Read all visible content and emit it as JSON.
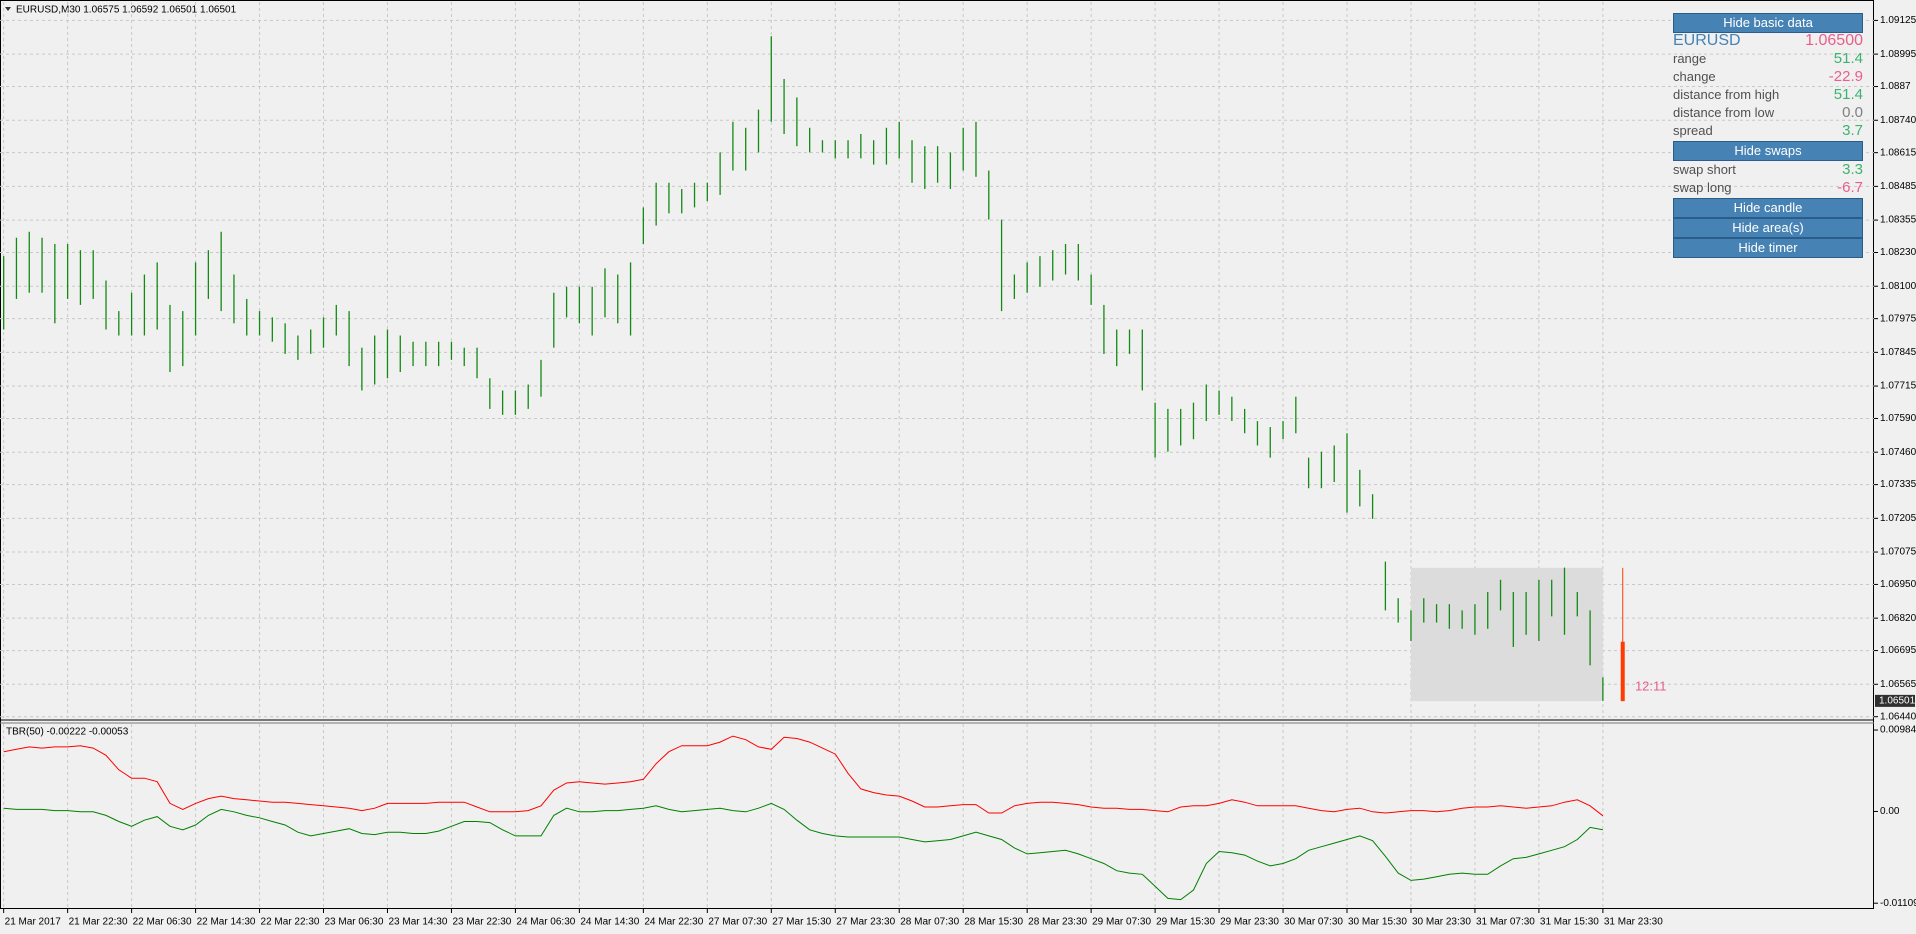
{
  "chart_data": [
    {
      "type": "hilo",
      "header": "EURUSD,M30  1.06575 1.06592 1.06501 1.06501",
      "color": "#138a13",
      "categories": [
        "21 Mar 2017",
        null,
        null,
        null,
        null,
        "21 Mar 22:30",
        null,
        null,
        null,
        null,
        "22 Mar 06:30",
        null,
        null,
        null,
        null,
        "22 Mar 14:30",
        null,
        null,
        null,
        null,
        "22 Mar 22:30",
        null,
        null,
        null,
        null,
        "23 Mar 06:30",
        null,
        null,
        null,
        null,
        "23 Mar 14:30",
        null,
        null,
        null,
        null,
        "23 Mar 22:30",
        null,
        null,
        null,
        null,
        "24 Mar 06:30",
        null,
        null,
        null,
        null,
        "24 Mar 14:30",
        null,
        null,
        null,
        null,
        "24 Mar 22:30",
        null,
        null,
        null,
        null,
        "27 Mar 07:30",
        null,
        null,
        null,
        null,
        "27 Mar 15:30",
        null,
        null,
        null,
        null,
        "27 Mar 23:30",
        null,
        null,
        null,
        null,
        "28 Mar 07:30",
        null,
        null,
        null,
        null,
        "28 Mar 15:30",
        null,
        null,
        null,
        null,
        "28 Mar 23:30",
        null,
        null,
        null,
        null,
        "29 Mar 07:30",
        null,
        null,
        null,
        null,
        "29 Mar 15:30",
        null,
        null,
        null,
        null,
        "29 Mar 23:30",
        null,
        null,
        null,
        null,
        "30 Mar 07:30",
        null,
        null,
        null,
        null,
        "30 Mar 15:30",
        null,
        null,
        null,
        null,
        "30 Mar 23:30",
        null,
        null,
        null,
        null,
        "31 Mar 07:30",
        null,
        null,
        null,
        null,
        "31 Mar 15:30",
        null,
        null,
        null,
        null,
        "31 Mar 23:30"
      ],
      "high": [
        1.08216,
        1.08287,
        1.0831,
        1.08287,
        1.08263,
        1.08263,
        1.08239,
        1.08239,
        1.08122,
        1.08004,
        1.08075,
        1.08145,
        1.08192,
        1.08028,
        1.08004,
        1.08192,
        1.08239,
        1.0831,
        1.08145,
        1.08051,
        1.08004,
        1.0798,
        1.07957,
        1.0791,
        1.07933,
        1.0798,
        1.08028,
        1.08004,
        1.07863,
        1.0791,
        1.07933,
        1.0791,
        1.07886,
        1.07886,
        1.07886,
        1.07886,
        1.07863,
        1.07863,
        1.07745,
        1.07698,
        1.07698,
        1.07721,
        1.07816,
        1.08075,
        1.08098,
        1.08098,
        1.08098,
        1.08169,
        1.08145,
        1.08192,
        1.08404,
        1.08499,
        1.08499,
        1.08475,
        1.08499,
        1.08499,
        1.08616,
        1.08734,
        1.08711,
        1.08781,
        1.09064,
        1.08899,
        1.08828,
        1.08711,
        1.08663,
        1.08663,
        1.08663,
        1.08687,
        1.08663,
        1.08711,
        1.08734,
        1.08663,
        1.0864,
        1.0864,
        1.08616,
        1.08711,
        1.08734,
        1.08546,
        1.08357,
        1.08145,
        1.08192,
        1.08216,
        1.08239,
        1.08263,
        1.08263,
        1.08145,
        1.08028,
        1.07933,
        1.07933,
        1.07933,
        1.07651,
        1.07627,
        1.07627,
        1.07651,
        1.07721,
        1.07698,
        1.07674,
        1.07627,
        1.0758,
        1.07557,
        1.0758,
        1.07674,
        1.07439,
        1.07462,
        1.07486,
        1.07533,
        1.07392,
        1.07298,
        1.07038,
        1.06897,
        1.0685,
        1.06897,
        1.06874,
        1.06874,
        1.0685,
        1.06874,
        1.06921,
        1.06968,
        1.06921,
        1.06921,
        1.06968,
        1.06968,
        1.07015,
        1.06921,
        1.0685,
        1.06592
      ],
      "low": [
        1.07933,
        1.08051,
        1.08075,
        1.08075,
        1.07957,
        1.08051,
        1.08028,
        1.08051,
        1.07933,
        1.0791,
        1.0791,
        1.0791,
        1.07933,
        1.07769,
        1.07792,
        1.0791,
        1.08051,
        1.08004,
        1.07957,
        1.0791,
        1.0791,
        1.07886,
        1.07839,
        1.07816,
        1.07839,
        1.07863,
        1.0791,
        1.07792,
        1.07698,
        1.07721,
        1.07745,
        1.07769,
        1.07792,
        1.07792,
        1.07792,
        1.07816,
        1.07792,
        1.07745,
        1.07627,
        1.07604,
        1.07604,
        1.07627,
        1.07674,
        1.07863,
        1.0798,
        1.07957,
        1.0791,
        1.0798,
        1.07957,
        1.0791,
        1.08263,
        1.08334,
        1.08381,
        1.08381,
        1.08404,
        1.08428,
        1.08452,
        1.08546,
        1.08546,
        1.08616,
        1.08734,
        1.08687,
        1.0864,
        1.08616,
        1.08616,
        1.08593,
        1.08593,
        1.08593,
        1.08569,
        1.08569,
        1.08593,
        1.08499,
        1.08475,
        1.08499,
        1.08475,
        1.08546,
        1.08522,
        1.08357,
        1.08004,
        1.08051,
        1.08075,
        1.08098,
        1.08122,
        1.08145,
        1.08122,
        1.08028,
        1.07839,
        1.07792,
        1.07839,
        1.07698,
        1.07439,
        1.07462,
        1.07486,
        1.0751,
        1.0758,
        1.07604,
        1.0758,
        1.07533,
        1.07486,
        1.07439,
        1.0751,
        1.07533,
        1.07321,
        1.07321,
        1.07345,
        1.07227,
        1.07251,
        1.07203,
        1.0685,
        1.06803,
        1.06732,
        1.06803,
        1.06803,
        1.06779,
        1.06779,
        1.06756,
        1.06779,
        1.0685,
        1.06709,
        1.06756,
        1.06732,
        1.06827,
        1.06756,
        1.06827,
        1.06638,
        1.06501
      ],
      "ylim": [
        1.06435,
        1.09196
      ],
      "yticks": [
        1.09125,
        1.08995,
        1.0887,
        {
          "value": 1.0874,
          "label": "1.08740"
        },
        1.08615,
        1.08485,
        1.08355,
        {
          "value": 1.0823,
          "label": "1.08230"
        },
        {
          "value": 1.081,
          "label": "1.08100"
        },
        1.07975,
        1.07845,
        1.07715,
        {
          "value": 1.0759,
          "label": "1.07590"
        },
        {
          "value": 1.0746,
          "label": "1.07460"
        },
        1.07335,
        1.07205,
        1.07075,
        {
          "value": 1.0695,
          "label": "1.06950"
        },
        {
          "value": 1.0682,
          "label": "1.06820"
        },
        1.06695,
        1.06565,
        {
          "value": 1.0644,
          "label": "1.06440"
        }
      ],
      "grid": true,
      "last_price": 1.06501,
      "area": {
        "high": 1.07014,
        "low": 1.065,
        "color": "#dcdcdc"
      },
      "candle": {
        "high": 1.07014,
        "low": 1.065,
        "open": 1.06729,
        "close": 1.065,
        "color": "#ff3b00"
      },
      "timer": "12:11",
      "timer_color": "#e8608a"
    },
    {
      "type": "line",
      "header": "TBR(50) -0.00222 -0.00053",
      "series": [
        {
          "color": "#ff0000",
          "values": [
            0.00722,
            0.00751,
            0.0078,
            0.00766,
            0.0078,
            0.0078,
            0.00795,
            0.00766,
            0.00679,
            0.00504,
            0.00402,
            0.00402,
            0.00359,
            0.00097,
            0.00025,
            0.00097,
            0.00155,
            0.00185,
            0.00155,
            0.00141,
            0.00126,
            0.00112,
            0.00112,
            0.00097,
            0.00083,
            0.00068,
            0.00054,
            0.00039,
            0.0001,
            0.00039,
            0.00097,
            0.00097,
            0.00097,
            0.00097,
            0.00112,
            0.00112,
            0.00112,
            0.00054,
            -4e-05,
            -4e-05,
            -4e-05,
            0.0001,
            0.00068,
            0.00257,
            0.00344,
            0.00359,
            0.00344,
            0.0033,
            0.00344,
            0.00359,
            0.00388,
            0.00577,
            0.00722,
            0.00795,
            0.00795,
            0.00795,
            0.00838,
            0.00911,
            0.00867,
            0.0078,
            0.00751,
            0.00896,
            0.00882,
            0.00838,
            0.00766,
            0.00693,
            0.00461,
            0.00272,
            0.00228,
            0.00199,
            0.00185,
            0.00126,
            0.00054,
            0.00054,
            0.00068,
            0.00083,
            0.00083,
            -0.00019,
            -0.00019,
            0.00068,
            0.00097,
            0.00112,
            0.00112,
            0.00097,
            0.00083,
            0.00054,
            0.00039,
            0.00039,
            0.00025,
            0.00025,
            0.0001,
            -4e-05,
            0.00054,
            0.00068,
            0.00068,
            0.00097,
            0.00141,
            0.00112,
            0.00068,
            0.00068,
            0.00068,
            0.00068,
            0.00039,
            0.0001,
            -4e-05,
            0.00025,
            0.00039,
            -4e-05,
            -0.00019,
            -4e-05,
            0.0001,
            0.0001,
            -4e-05,
            0.0001,
            0.00039,
            0.00054,
            0.00054,
            0.00068,
            0.00054,
            0.00039,
            0.00054,
            0.00068,
            0.00112,
            0.00141,
            0.00068,
            -0.00053
          ]
        },
        {
          "color": "#008000",
          "values": [
            0.00039,
            0.00025,
            0.00025,
            0.00025,
            0.0001,
            0.0001,
            -4e-05,
            -4e-05,
            -0.00048,
            -0.00121,
            -0.00179,
            -0.00106,
            -0.00062,
            -0.00179,
            -0.00222,
            -0.00164,
            -0.00048,
            0.00025,
            -4e-05,
            -0.00048,
            -0.00077,
            -0.00121,
            -0.00164,
            -0.00251,
            -0.00295,
            -0.00266,
            -0.00237,
            -0.00208,
            -0.00266,
            -0.0028,
            -0.00251,
            -0.00251,
            -0.00266,
            -0.00266,
            -0.00237,
            -0.00179,
            -0.00121,
            -0.00121,
            -0.00135,
            -0.00222,
            -0.00295,
            -0.00295,
            -0.00295,
            -0.00048,
            0.00039,
            -4e-05,
            -4e-05,
            0.0001,
            0.0001,
            0.00025,
            0.00039,
            0.00068,
            0.00025,
            -4e-05,
            0.0001,
            0.00025,
            0.00039,
            0.0001,
            -4e-05,
            0.00039,
            0.00097,
            0.00025,
            -0.00106,
            -0.00222,
            -0.00266,
            -0.00295,
            -0.00309,
            -0.00309,
            -0.00309,
            -0.00309,
            -0.00309,
            -0.00339,
            -0.00368,
            -0.00353,
            -0.00339,
            -0.00295,
            -0.00251,
            -0.00295,
            -0.00339,
            -0.0044,
            -0.00513,
            -0.00498,
            -0.00484,
            -0.00469,
            -0.00513,
            -0.00571,
            -0.00629,
            -0.00716,
            -0.00745,
            -0.0076,
            -0.00905,
            -0.01051,
            -0.01065,
            -0.00949,
            -0.00629,
            -0.00484,
            -0.00498,
            -0.00527,
            -0.006,
            -0.00658,
            -0.00629,
            -0.00571,
            -0.00469,
            -0.00426,
            -0.00382,
            -0.00339,
            -0.00295,
            -0.00353,
            -0.00542,
            -0.00745,
            -0.00833,
            -0.00818,
            -0.00789,
            -0.0076,
            -0.00745,
            -0.0076,
            -0.0076,
            -0.00658,
            -0.00571,
            -0.00556,
            -0.00513,
            -0.00469,
            -0.00426,
            -0.00339,
            -0.00193,
            -0.00222
          ]
        }
      ],
      "ylim": [
        -0.01167,
        0.01057
      ],
      "yticks": [
        0.00984,
        {
          "value": 0,
          "label": "0.00"
        },
        -0.01109
      ]
    }
  ],
  "panel": {
    "buttons": [
      "Hide basic data",
      "Hide swaps",
      "Hide candle",
      "Hide area(s)",
      "Hide timer"
    ],
    "symbol": "EURUSD",
    "price": "1.06500",
    "rows": [
      [
        "range",
        "51.4"
      ],
      [
        "change",
        "-22.9"
      ],
      [
        "distance from high",
        "51.4"
      ],
      [
        "distance from low",
        "0.0"
      ],
      [
        "spread",
        "3.7"
      ],
      [
        "swap short",
        "3.3"
      ],
      [
        "swap long",
        "-6.7"
      ]
    ]
  }
}
